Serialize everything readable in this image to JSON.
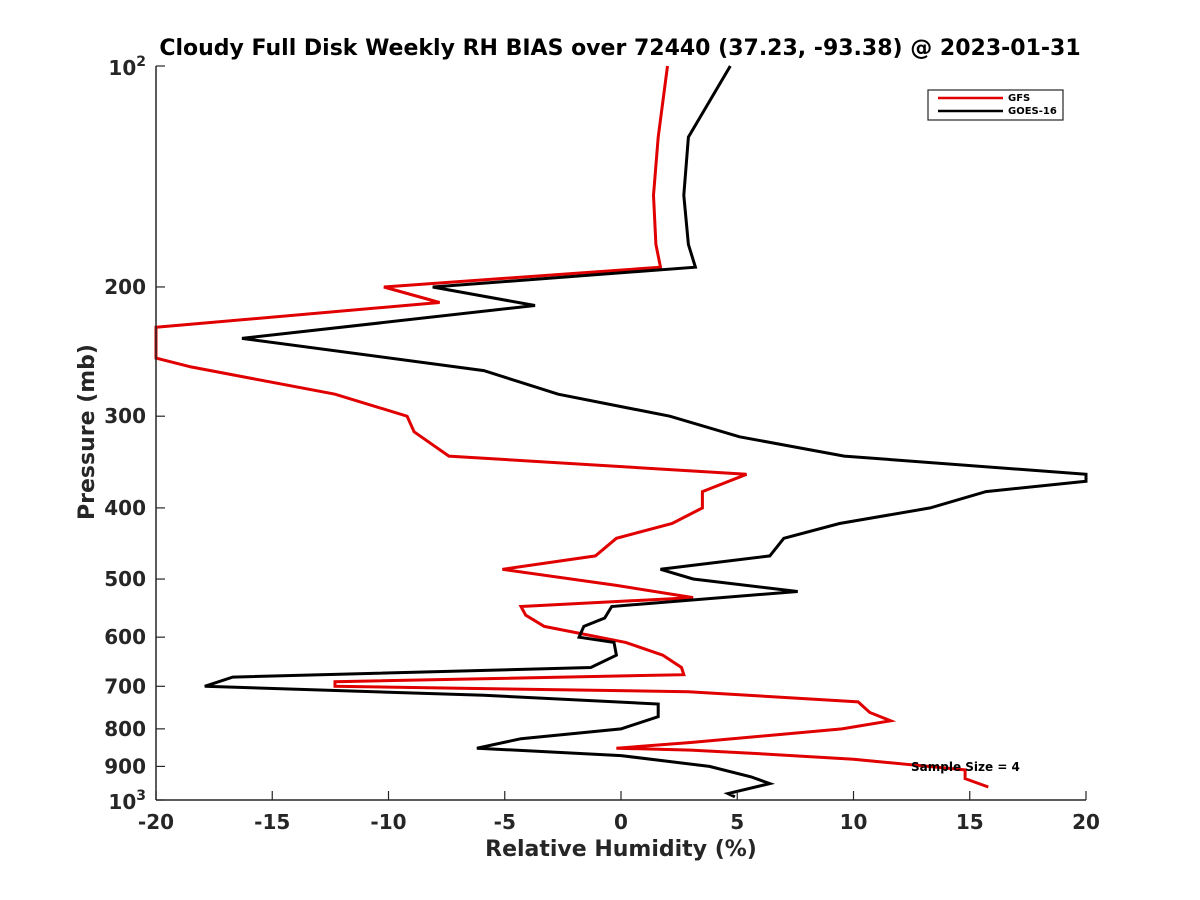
{
  "chart_data": {
    "type": "line",
    "title": "Cloudy Full Disk Weekly RH BIAS over 72440 (37.23, -93.38) @ 2023-01-31",
    "xlabel": "Relative Humidity (%)",
    "ylabel": "Pressure (mb)",
    "xlim": [
      -20,
      20
    ],
    "ylim": [
      100,
      1000
    ],
    "y_scale": "log",
    "y_reversed": true,
    "xticks": [
      "-20",
      "-15",
      "-10",
      "-5",
      "0",
      "5",
      "10",
      "15",
      "20"
    ],
    "yticks": [
      {
        "value": 100,
        "label": "10",
        "sup": "2"
      },
      {
        "value": 200,
        "label": "200",
        "sup": ""
      },
      {
        "value": 300,
        "label": "300",
        "sup": ""
      },
      {
        "value": 400,
        "label": "400",
        "sup": ""
      },
      {
        "value": 500,
        "label": "500",
        "sup": ""
      },
      {
        "value": 600,
        "label": "600",
        "sup": ""
      },
      {
        "value": 700,
        "label": "700",
        "sup": ""
      },
      {
        "value": 800,
        "label": "800",
        "sup": ""
      },
      {
        "value": 900,
        "label": "900",
        "sup": ""
      },
      {
        "value": 1000,
        "label": "10",
        "sup": "3"
      }
    ],
    "legend_position": "top-right",
    "grid": false,
    "annotation": "Sample Size = 4",
    "series": [
      {
        "name": "GFS",
        "color": "#e00000",
        "points": [
          [
            2.0,
            100
          ],
          [
            1.6,
            125
          ],
          [
            1.4,
            150
          ],
          [
            1.5,
            175
          ],
          [
            1.7,
            188
          ],
          [
            -10.2,
            200
          ],
          [
            -7.8,
            210
          ],
          [
            -20.0,
            227
          ],
          [
            -20.0,
            250
          ],
          [
            -18.5,
            257
          ],
          [
            -12.3,
            280
          ],
          [
            -9.2,
            300
          ],
          [
            -8.9,
            315
          ],
          [
            -7.4,
            340
          ],
          [
            5.4,
            360
          ],
          [
            3.5,
            380
          ],
          [
            3.5,
            400
          ],
          [
            2.2,
            420
          ],
          [
            -0.2,
            440
          ],
          [
            -1.1,
            465
          ],
          [
            -5.1,
            485
          ],
          [
            -0.2,
            510
          ],
          [
            3.1,
            530
          ],
          [
            -4.3,
            545
          ],
          [
            -4.1,
            560
          ],
          [
            -3.3,
            580
          ],
          [
            0.2,
            610
          ],
          [
            1.8,
            635
          ],
          [
            2.6,
            660
          ],
          [
            2.7,
            675
          ],
          [
            -12.3,
            690
          ],
          [
            -12.3,
            700
          ],
          [
            2.9,
            712
          ],
          [
            10.2,
            735
          ],
          [
            10.7,
            760
          ],
          [
            11.6,
            780
          ],
          [
            9.5,
            800
          ],
          [
            3.0,
            835
          ],
          [
            -0.2,
            850
          ],
          [
            3.0,
            855
          ],
          [
            6.0,
            865
          ],
          [
            10.0,
            880
          ],
          [
            14.8,
            910
          ],
          [
            14.8,
            935
          ],
          [
            15.8,
            960
          ]
        ]
      },
      {
        "name": "GOES-16",
        "color": "#000000",
        "points": [
          [
            4.7,
            100
          ],
          [
            2.9,
            125
          ],
          [
            2.7,
            150
          ],
          [
            2.9,
            175
          ],
          [
            3.2,
            188
          ],
          [
            -8.1,
            200
          ],
          [
            -3.7,
            212
          ],
          [
            -16.3,
            235
          ],
          [
            -5.9,
            260
          ],
          [
            -2.7,
            280
          ],
          [
            2.1,
            300
          ],
          [
            5.1,
            320
          ],
          [
            9.6,
            340
          ],
          [
            20.0,
            360
          ],
          [
            20.0,
            368
          ],
          [
            15.7,
            380
          ],
          [
            13.3,
            400
          ],
          [
            9.4,
            420
          ],
          [
            7.0,
            440
          ],
          [
            6.4,
            465
          ],
          [
            1.7,
            485
          ],
          [
            3.1,
            500
          ],
          [
            7.6,
            520
          ],
          [
            -0.4,
            545
          ],
          [
            -0.7,
            565
          ],
          [
            -1.6,
            580
          ],
          [
            -1.8,
            600
          ],
          [
            -0.3,
            610
          ],
          [
            -0.2,
            635
          ],
          [
            -1.3,
            660
          ],
          [
            -16.7,
            680
          ],
          [
            -17.9,
            700
          ],
          [
            -5.9,
            720
          ],
          [
            1.6,
            740
          ],
          [
            1.6,
            770
          ],
          [
            0.0,
            800
          ],
          [
            -4.3,
            825
          ],
          [
            -6.2,
            850
          ],
          [
            0.0,
            870
          ],
          [
            3.8,
            900
          ],
          [
            5.6,
            930
          ],
          [
            6.4,
            950
          ],
          [
            4.6,
            980
          ],
          [
            4.9,
            990
          ]
        ]
      }
    ]
  }
}
